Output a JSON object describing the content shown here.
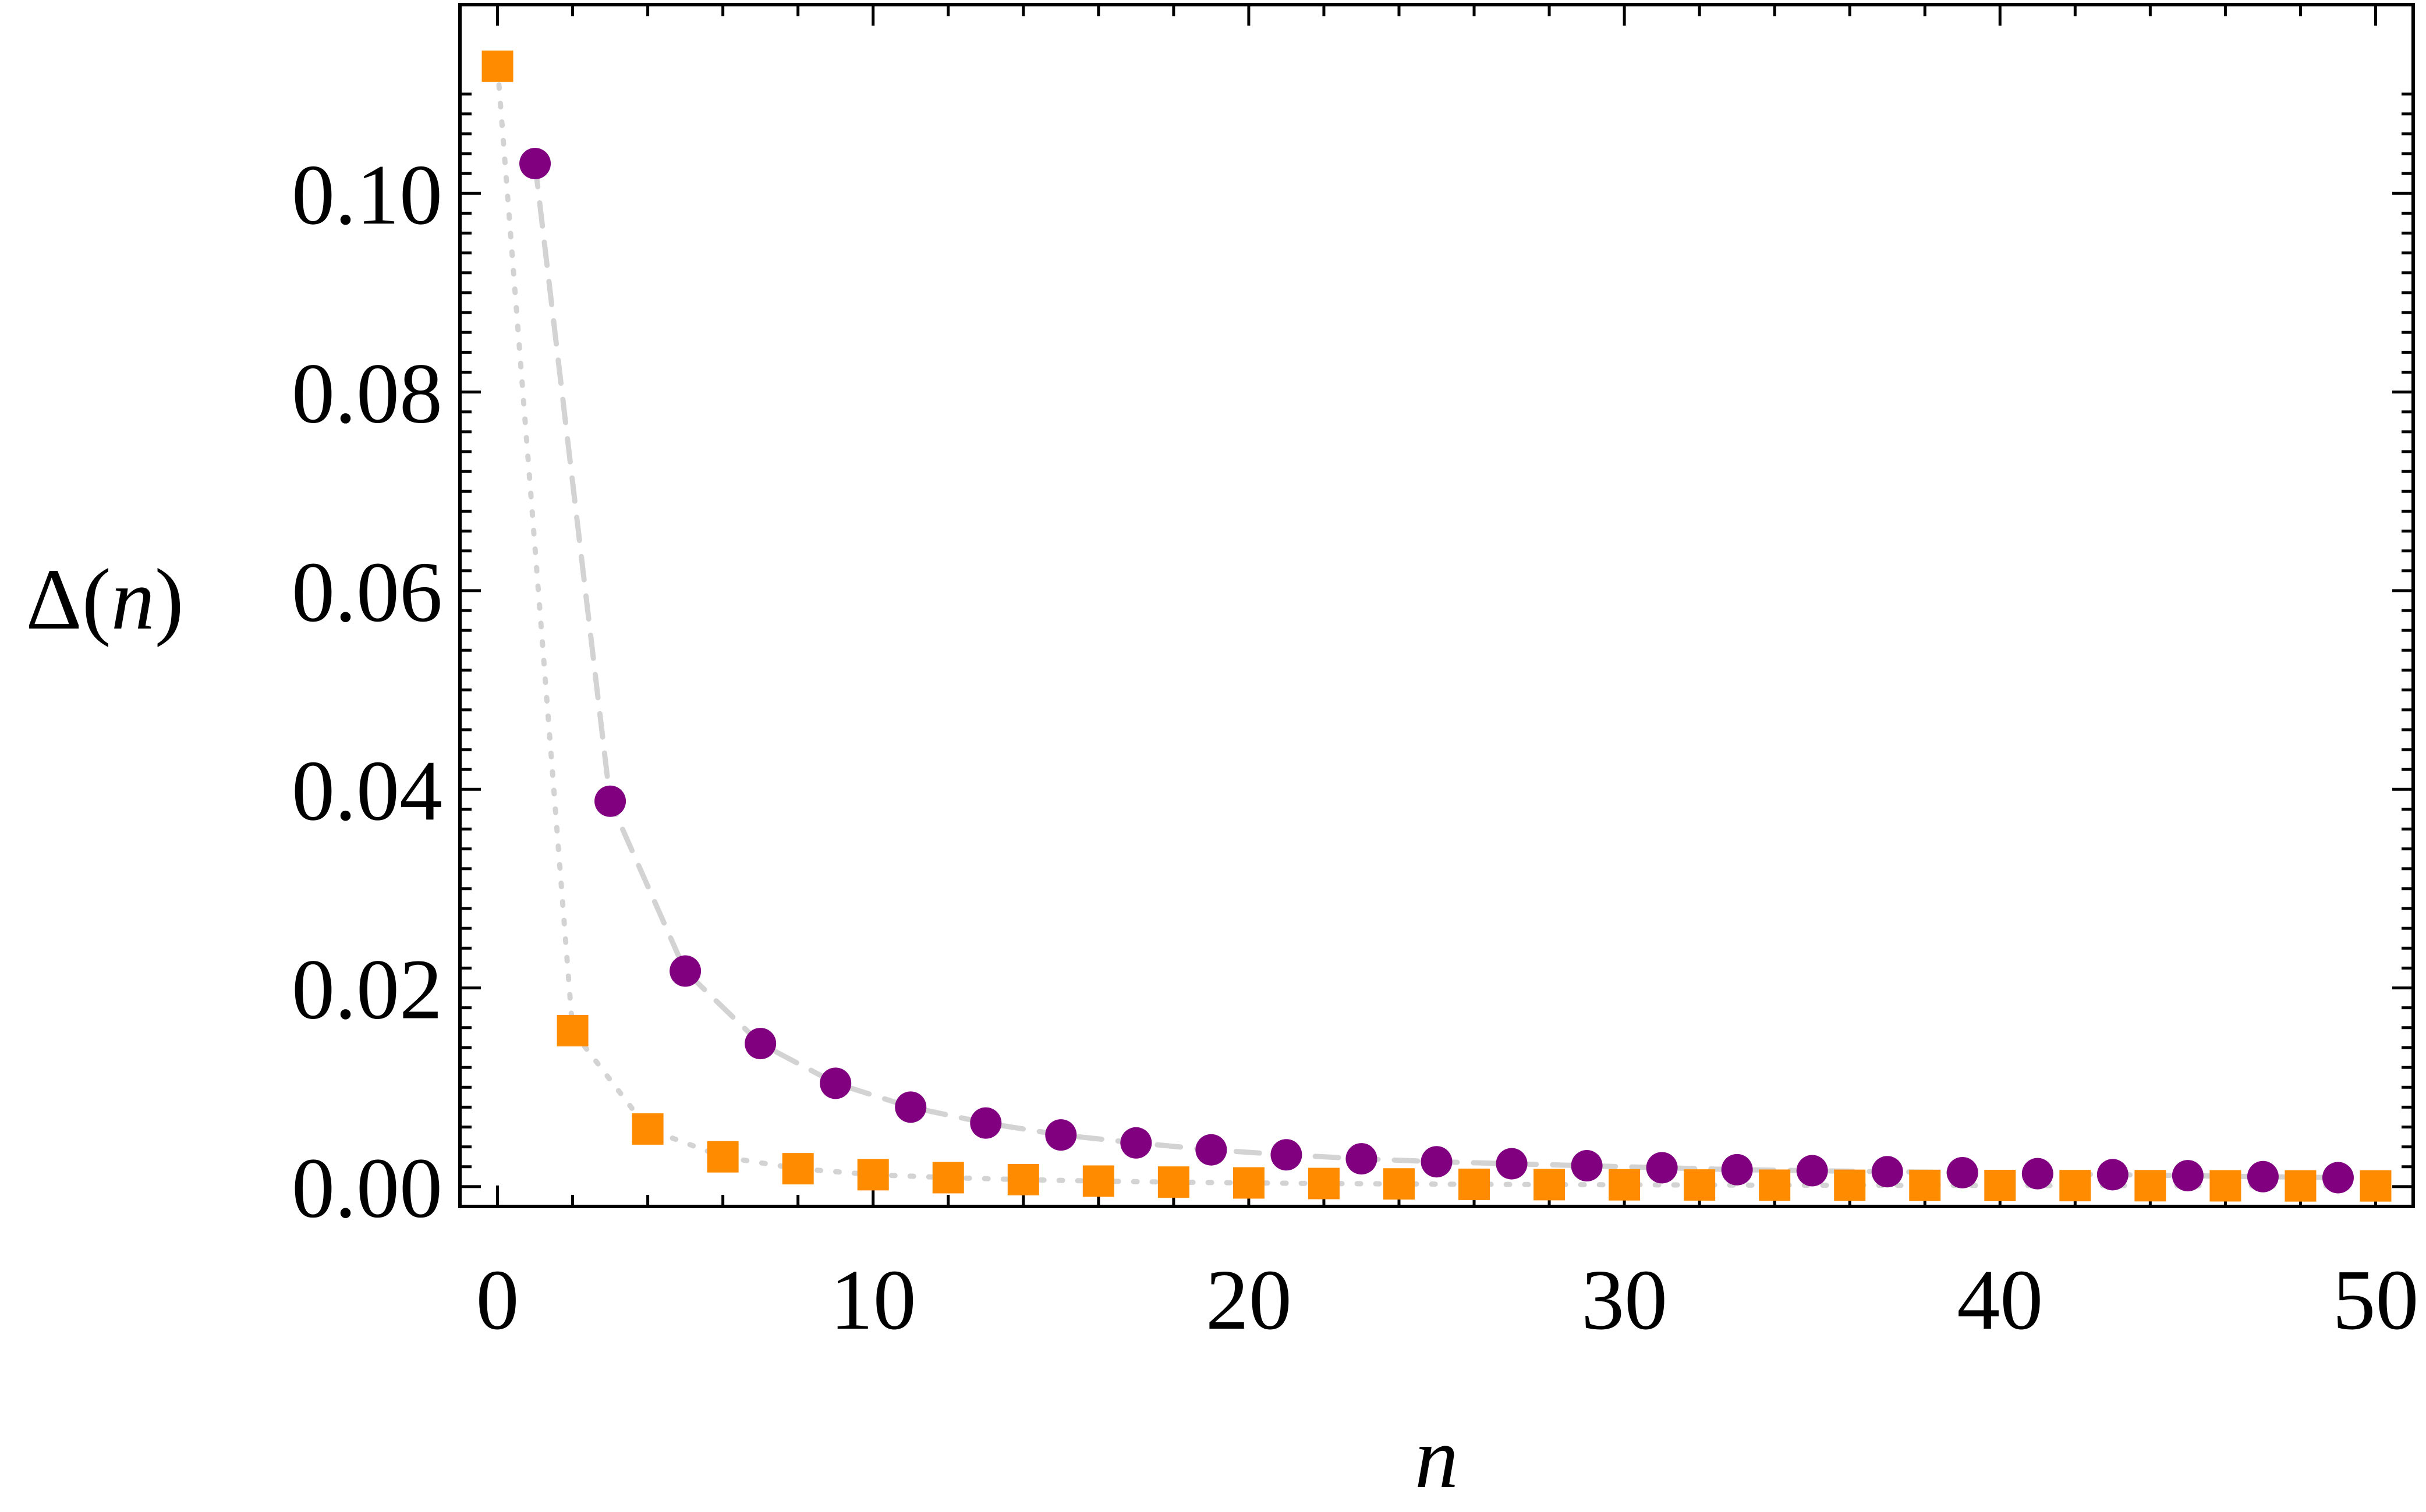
{
  "chart_data": {
    "type": "scatter",
    "title": "",
    "xlabel": "n",
    "ylabel": "Δ(n)",
    "ylabel_parts": {
      "prefix": "Δ(",
      "var": "n",
      "suffix": ")"
    },
    "xlim": [
      -1,
      51
    ],
    "ylim": [
      -0.002,
      0.119
    ],
    "xticks": [
      0,
      10,
      20,
      30,
      40,
      50
    ],
    "xtick_labels": [
      "0",
      "10",
      "20",
      "30",
      "40",
      "50"
    ],
    "yticks": [
      0.0,
      0.02,
      0.04,
      0.06,
      0.08,
      0.1
    ],
    "ytick_labels": [
      "0.00",
      "0.02",
      "0.04",
      "0.06",
      "0.08",
      "0.10"
    ],
    "grid": false,
    "series": [
      {
        "marker": "circle",
        "color": "#800080",
        "line_style": "dashed",
        "line_color": "#d3d3d3",
        "x": [
          1,
          3,
          5,
          7,
          9,
          11,
          13,
          15,
          17,
          19,
          21,
          23,
          25,
          27,
          29,
          31,
          33,
          35,
          37,
          39,
          41,
          43,
          45,
          47,
          49
        ],
        "y": [
          0.103,
          0.0388,
          0.0217,
          0.0144,
          0.0104,
          0.008,
          0.0064,
          0.0052,
          0.0044,
          0.0037,
          0.0032,
          0.0028,
          0.0025,
          0.0023,
          0.0021,
          0.0019,
          0.0017,
          0.0016,
          0.0015,
          0.0014,
          0.0013,
          0.0012,
          0.0011,
          0.001,
          0.0009
        ]
      },
      {
        "marker": "square",
        "color": "#ff8c00",
        "line_style": "dotted",
        "line_color": "#d3d3d3",
        "x": [
          0,
          2,
          4,
          6,
          8,
          10,
          12,
          14,
          16,
          18,
          20,
          22,
          24,
          26,
          28,
          30,
          32,
          34,
          36,
          38,
          40,
          42,
          44,
          46,
          48,
          50
        ],
        "y": [
          0.1128,
          0.0157,
          0.0058,
          0.003,
          0.0018,
          0.0012,
          0.0009,
          0.0007,
          0.00055,
          0.00045,
          0.00037,
          0.00031,
          0.00027,
          0.00023,
          0.0002,
          0.00018,
          0.00016,
          0.00014,
          0.00013,
          0.00012,
          0.00011,
          0.0001,
          9e-05,
          8e-05,
          7e-05,
          7e-05
        ]
      }
    ]
  }
}
